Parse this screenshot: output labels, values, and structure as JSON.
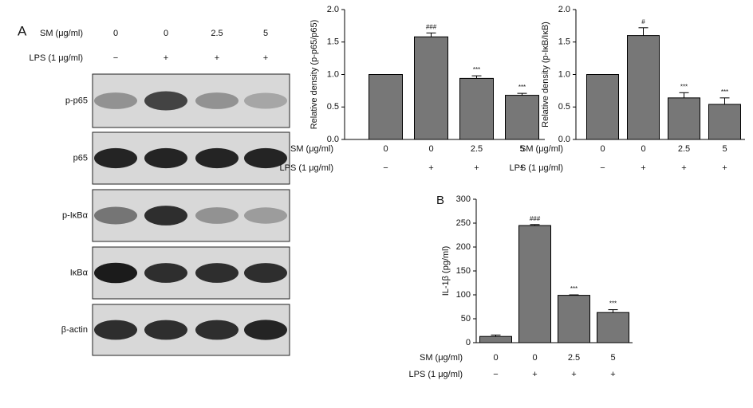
{
  "blot": {
    "panel": "A",
    "sm_label": "SM (μg/ml)",
    "sm": [
      "0",
      "0",
      "2.5",
      "5"
    ],
    "lps_label": "LPS (1 μg/ml)",
    "lps": [
      "−",
      "+",
      "+",
      "+"
    ],
    "rows": [
      "p-p65",
      "p65",
      "p-IκBα",
      "IκBα",
      "β-actin"
    ]
  },
  "chart_data": [
    {
      "type": "bar",
      "ylabel": "Relative density (p-p65/p65)",
      "categories": [
        "0",
        "0",
        "2.5",
        "5"
      ],
      "category_label": "SM (μg/ml)",
      "lps_label": "LPS (1 μg/ml)",
      "lps": [
        "−",
        "+",
        "+",
        "+"
      ],
      "values": [
        1.0,
        1.58,
        0.94,
        0.68
      ],
      "errors": [
        0,
        0.06,
        0.04,
        0.03
      ],
      "annotations": [
        null,
        "###",
        "***",
        "***"
      ],
      "color": "#777777",
      "ylim": [
        0,
        2
      ],
      "yticks": [
        {
          "value": 0,
          "label": "0.0"
        },
        {
          "value": 0.5,
          "label": "0.5"
        },
        {
          "value": 1,
          "label": "1.0"
        },
        {
          "value": 1.5,
          "label": "1.5"
        },
        {
          "value": 2,
          "label": "2.0"
        }
      ]
    },
    {
      "type": "bar",
      "ylabel": "Relative density (p-IκB/IκB)",
      "categories": [
        "0",
        "0",
        "2.5",
        "5"
      ],
      "category_label": "SM (μg/ml)",
      "lps_label": "LPS (1 μg/ml)",
      "lps": [
        "−",
        "+",
        "+",
        "+"
      ],
      "values": [
        1.0,
        1.6,
        0.64,
        0.54
      ],
      "errors": [
        0,
        0.12,
        0.08,
        0.1
      ],
      "annotations": [
        null,
        "#",
        "***",
        "***"
      ],
      "color": "#777777",
      "ylim": [
        0,
        2
      ],
      "yticks": [
        {
          "value": 0,
          "label": "0.0"
        },
        {
          "value": 0.5,
          "label": "0.5"
        },
        {
          "value": 1,
          "label": "1.0"
        },
        {
          "value": 1.5,
          "label": "1.5"
        },
        {
          "value": 2,
          "label": "2.0"
        }
      ]
    },
    {
      "type": "bar",
      "panel": "B",
      "ylabel": "IL-1β (pg/ml)",
      "categories": [
        "0",
        "0",
        "2.5",
        "5"
      ],
      "category_label": "SM (μg/ml)",
      "lps_label": "LPS (1 μg/ml)",
      "lps": [
        "−",
        "+",
        "+",
        "+"
      ],
      "values": [
        13,
        245,
        99,
        63
      ],
      "errors": [
        3,
        2,
        1,
        6
      ],
      "annotations": [
        null,
        "###",
        "***",
        "***"
      ],
      "color": "#777777",
      "ylim": [
        0,
        300
      ],
      "yticks": [
        0,
        50,
        100,
        150,
        200,
        250,
        300
      ]
    }
  ]
}
